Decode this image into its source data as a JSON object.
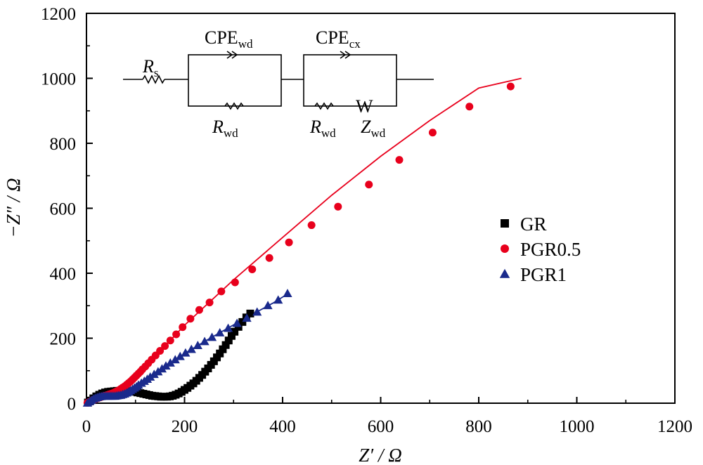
{
  "chart_data": {
    "type": "scatter",
    "xlabel": "Z′ / Ω",
    "ylabel": "−Z″ / Ω",
    "xlim": [
      0,
      1200
    ],
    "ylim": [
      0,
      1200
    ],
    "xticks": [
      "0",
      "200",
      "400",
      "600",
      "800",
      "1000",
      "1200"
    ],
    "yticks": [
      "0",
      "200",
      "400",
      "600",
      "800",
      "1000",
      "1200"
    ],
    "grid": false,
    "legend_position": "right",
    "series": [
      {
        "name": "GR",
        "marker": "square",
        "color": "#000000",
        "points": [
          [
            3,
            2
          ],
          [
            8,
            8
          ],
          [
            14,
            15
          ],
          [
            20,
            21
          ],
          [
            26,
            26
          ],
          [
            32,
            30
          ],
          [
            38,
            33
          ],
          [
            44,
            35
          ],
          [
            50,
            36
          ],
          [
            56,
            37
          ],
          [
            62,
            38
          ],
          [
            68,
            38
          ],
          [
            74,
            38
          ],
          [
            80,
            38
          ],
          [
            86,
            37
          ],
          [
            92,
            36
          ],
          [
            98,
            35
          ],
          [
            104,
            33
          ],
          [
            110,
            31
          ],
          [
            116,
            29
          ],
          [
            122,
            27
          ],
          [
            128,
            25
          ],
          [
            134,
            23
          ],
          [
            140,
            22
          ],
          [
            146,
            21
          ],
          [
            152,
            20
          ],
          [
            158,
            20
          ],
          [
            164,
            20
          ],
          [
            170,
            21
          ],
          [
            176,
            23
          ],
          [
            182,
            26
          ],
          [
            188,
            30
          ],
          [
            194,
            35
          ],
          [
            200,
            41
          ],
          [
            206,
            47
          ],
          [
            212,
            54
          ],
          [
            218,
            61
          ],
          [
            224,
            69
          ],
          [
            230,
            78
          ],
          [
            236,
            87
          ],
          [
            242,
            97
          ],
          [
            248,
            107
          ],
          [
            254,
            118
          ],
          [
            260,
            129
          ],
          [
            266,
            141
          ],
          [
            272,
            153
          ],
          [
            278,
            166
          ],
          [
            284,
            179
          ],
          [
            290,
            193
          ],
          [
            296,
            207
          ],
          [
            302,
            220
          ],
          [
            310,
            235
          ],
          [
            318,
            250
          ],
          [
            326,
            264
          ],
          [
            334,
            276
          ]
        ],
        "fit": [
          [
            0,
            0
          ],
          [
            8,
            10
          ],
          [
            20,
            22
          ],
          [
            35,
            32
          ],
          [
            55,
            37
          ],
          [
            80,
            38
          ],
          [
            105,
            33
          ],
          [
            130,
            24
          ],
          [
            150,
            20
          ],
          [
            165,
            20
          ],
          [
            180,
            25
          ],
          [
            200,
            40
          ],
          [
            230,
            78
          ],
          [
            260,
            129
          ],
          [
            290,
            193
          ],
          [
            315,
            245
          ],
          [
            340,
            286
          ]
        ]
      },
      {
        "name": "PGR0.5",
        "marker": "circle",
        "color": "#e8001c",
        "points": [
          [
            2,
            1
          ],
          [
            6,
            4
          ],
          [
            10,
            7
          ],
          [
            14,
            10
          ],
          [
            18,
            12
          ],
          [
            22,
            15
          ],
          [
            26,
            17
          ],
          [
            30,
            19
          ],
          [
            34,
            21
          ],
          [
            38,
            23
          ],
          [
            42,
            25
          ],
          [
            46,
            27
          ],
          [
            50,
            29
          ],
          [
            54,
            31
          ],
          [
            58,
            34
          ],
          [
            62,
            37
          ],
          [
            66,
            40
          ],
          [
            70,
            44
          ],
          [
            74,
            48
          ],
          [
            78,
            52
          ],
          [
            82,
            57
          ],
          [
            86,
            62
          ],
          [
            90,
            67
          ],
          [
            94,
            73
          ],
          [
            98,
            79
          ],
          [
            102,
            85
          ],
          [
            106,
            91
          ],
          [
            110,
            97
          ],
          [
            114,
            104
          ],
          [
            120,
            113
          ],
          [
            126,
            123
          ],
          [
            133,
            134
          ],
          [
            141,
            147
          ],
          [
            150,
            161
          ],
          [
            160,
            176
          ],
          [
            171,
            193
          ],
          [
            183,
            212
          ],
          [
            196,
            234
          ],
          [
            212,
            260
          ],
          [
            230,
            287
          ],
          [
            251,
            310
          ],
          [
            275,
            344
          ],
          [
            303,
            372
          ],
          [
            338,
            412
          ],
          [
            373,
            447
          ],
          [
            413,
            495
          ],
          [
            459,
            548
          ],
          [
            513,
            605
          ],
          [
            576,
            673
          ],
          [
            638,
            749
          ],
          [
            706,
            833
          ],
          [
            781,
            913
          ],
          [
            865,
            975
          ]
        ],
        "fit": [
          [
            0,
            0
          ],
          [
            20,
            13
          ],
          [
            40,
            24
          ],
          [
            60,
            35
          ],
          [
            80,
            53
          ],
          [
            100,
            80
          ],
          [
            120,
            110
          ],
          [
            150,
            160
          ],
          [
            200,
            240
          ],
          [
            300,
            380
          ],
          [
            400,
            510
          ],
          [
            500,
            640
          ],
          [
            600,
            760
          ],
          [
            700,
            870
          ],
          [
            800,
            970
          ],
          [
            887,
            1000
          ]
        ]
      },
      {
        "name": "PGR1",
        "marker": "triangle",
        "color": "#1a2a8c",
        "points": [
          [
            2,
            1
          ],
          [
            6,
            5
          ],
          [
            10,
            9
          ],
          [
            14,
            13
          ],
          [
            18,
            16
          ],
          [
            22,
            18
          ],
          [
            26,
            20
          ],
          [
            30,
            21
          ],
          [
            34,
            22
          ],
          [
            38,
            22
          ],
          [
            42,
            22
          ],
          [
            46,
            22
          ],
          [
            50,
            22
          ],
          [
            54,
            22
          ],
          [
            58,
            22
          ],
          [
            62,
            23
          ],
          [
            66,
            24
          ],
          [
            70,
            25
          ],
          [
            74,
            27
          ],
          [
            78,
            29
          ],
          [
            82,
            32
          ],
          [
            86,
            35
          ],
          [
            90,
            39
          ],
          [
            94,
            43
          ],
          [
            98,
            47
          ],
          [
            102,
            51
          ],
          [
            106,
            56
          ],
          [
            112,
            62
          ],
          [
            118,
            68
          ],
          [
            124,
            74
          ],
          [
            130,
            81
          ],
          [
            138,
            89
          ],
          [
            146,
            97
          ],
          [
            154,
            106
          ],
          [
            162,
            115
          ],
          [
            171,
            124
          ],
          [
            181,
            134
          ],
          [
            191,
            144
          ],
          [
            202,
            155
          ],
          [
            214,
            166
          ],
          [
            227,
            178
          ],
          [
            241,
            190
          ],
          [
            256,
            203
          ],
          [
            272,
            217
          ],
          [
            289,
            231
          ],
          [
            307,
            246
          ],
          [
            327,
            262
          ],
          [
            348,
            281
          ],
          [
            370,
            301
          ],
          [
            391,
            318
          ],
          [
            410,
            338
          ]
        ],
        "fit": [
          [
            0,
            0
          ],
          [
            15,
            14
          ],
          [
            30,
            21
          ],
          [
            50,
            22
          ],
          [
            65,
            24
          ],
          [
            80,
            30
          ],
          [
            95,
            44
          ],
          [
            110,
            60
          ],
          [
            130,
            81
          ],
          [
            160,
            113
          ],
          [
            200,
            153
          ],
          [
            250,
            198
          ],
          [
            300,
            241
          ],
          [
            350,
            283
          ],
          [
            380,
            308
          ],
          [
            411,
            337
          ]
        ]
      }
    ],
    "circuit": {
      "rs": "R",
      "rs_sub": "s",
      "cpe1": "CPE",
      "cpe1_sub": "wd",
      "r1": "R",
      "r1_sub": "wd",
      "cpe2": "CPE",
      "cpe2_sub": "cx",
      "r2": "R",
      "r2_sub": "wd",
      "w": "W",
      "z": "Z",
      "z_sub": "wd"
    }
  }
}
